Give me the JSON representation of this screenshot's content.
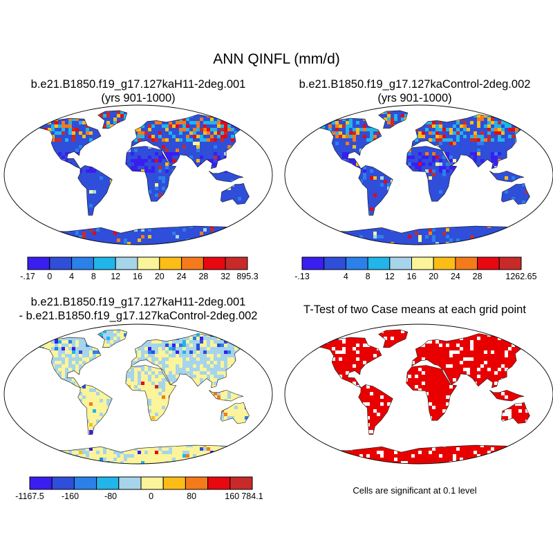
{
  "title": "ANN QINFL (mm/d)",
  "panels": [
    {
      "title_line1": "b.e21.B1850.f19_g17.127kaH11-2deg.001",
      "title_line2": "(yrs 901-1000)"
    },
    {
      "title_line1": "b.e21.B1850.f19_g17.127kaControl-2deg.002",
      "title_line2": "(yrs 901-1000)"
    },
    {
      "title_line1": "b.e21.B1850.f19_g17.127kaH11-2deg.001",
      "title_line2": "- b.e21.B1850.f19_g17.127kaControl-2deg.002"
    },
    {
      "title_line1": "T-Test of two Case means at each grid point",
      "title_line2": ""
    }
  ],
  "significance_note": "Cells are significant at 0.1 level",
  "chart_data": [
    {
      "type": "heatmap",
      "panel": "top-left",
      "title": "b.e21.B1850.f19_g17.127kaH11-2deg.001 (yrs 901-1000)",
      "colorbar": {
        "colors": [
          "#3a1ef0",
          "#2f4ed9",
          "#2b80ea",
          "#21b5ea",
          "#a6d4ea",
          "#fbf49a",
          "#fbbd16",
          "#f47a1a",
          "#e80810",
          "#c82a2a"
        ],
        "tick_labels": [
          "-.17",
          "0",
          "4",
          "8",
          "12",
          "16",
          "20",
          "24",
          "28",
          "32",
          "895.3"
        ]
      }
    },
    {
      "type": "heatmap",
      "panel": "top-right",
      "title": "b.e21.B1850.f19_g17.127kaControl-2deg.002 (yrs 901-1000)",
      "colorbar": {
        "colors": [
          "#3a1ef0",
          "#2f4ed9",
          "#2b80ea",
          "#21b5ea",
          "#a6d4ea",
          "#fbf49a",
          "#fbbd16",
          "#f47a1a",
          "#e80810",
          "#c82a2a"
        ],
        "tick_labels": [
          "-.13",
          "",
          "4",
          "8",
          "12",
          "16",
          "20",
          "24",
          "28",
          "",
          "1262.65"
        ]
      }
    },
    {
      "type": "heatmap",
      "panel": "bottom-left",
      "title": "b.e21.B1850.f19_g17.127kaH11-2deg.001 - b.e21.B1850.f19_g17.127kaControl-2deg.002",
      "colorbar": {
        "colors": [
          "#3a1ef0",
          "#2f4ed9",
          "#2b80ea",
          "#21b5ea",
          "#a6d4ea",
          "#fbf49a",
          "#fbbd16",
          "#f47a1a",
          "#e80810",
          "#c82a2a"
        ],
        "tick_labels": [
          "-1167.5",
          "",
          "-160",
          "",
          "-80",
          "",
          "0",
          "",
          "80",
          "",
          "160",
          "784.1"
        ]
      }
    },
    {
      "type": "heatmap",
      "panel": "bottom-right",
      "title": "T-Test of two Case means at each grid point",
      "significance_level": 0.1,
      "color": "#e80000"
    }
  ]
}
